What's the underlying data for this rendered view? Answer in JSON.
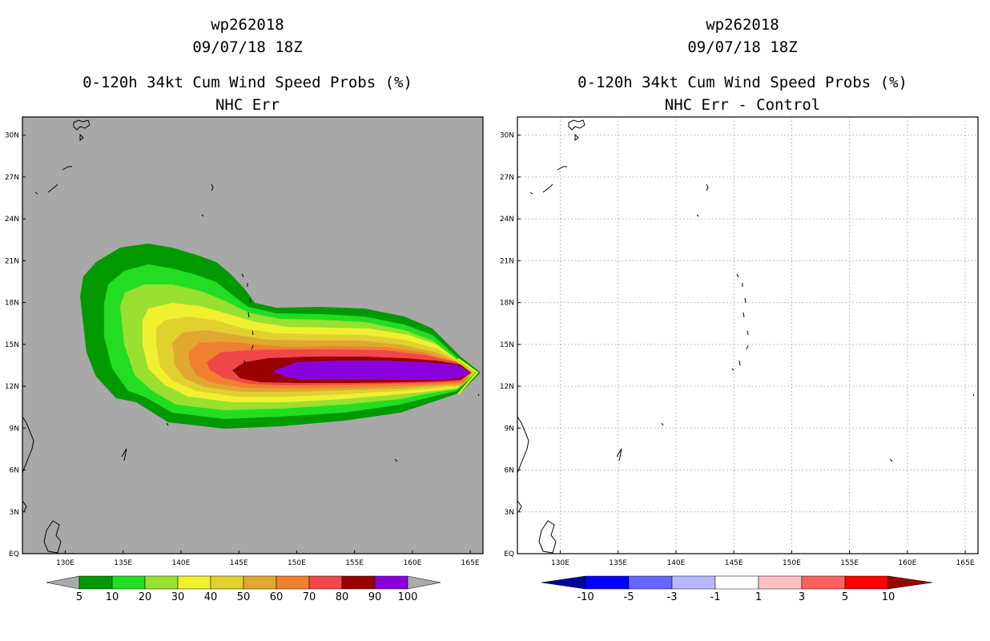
{
  "panels": [
    {
      "title_line1": "wp262018",
      "title_line2": "09/07/18 18Z",
      "title_line3": "0-120h 34kt Cum Wind Speed Probs (%)",
      "title_line4": "NHC Err"
    },
    {
      "title_line1": "wp262018",
      "title_line2": "09/07/18 18Z",
      "title_line3": "0-120h 34kt Cum Wind Speed Probs (%)",
      "title_line4": "NHC Err - Control"
    }
  ],
  "axes": {
    "lat_labels": [
      "EQ",
      "3N",
      "6N",
      "9N",
      "12N",
      "15N",
      "18N",
      "21N",
      "24N",
      "27N",
      "30N"
    ],
    "lon_labels": [
      "130E",
      "135E",
      "140E",
      "145E",
      "150E",
      "155E",
      "160E",
      "165E"
    ]
  },
  "colorbar_left": {
    "labels": [
      "5",
      "10",
      "20",
      "30",
      "40",
      "50",
      "60",
      "70",
      "80",
      "90",
      "100"
    ],
    "colors": [
      "#009900",
      "#22dd22",
      "#99e030",
      "#f0f030",
      "#e0d030",
      "#e0a830",
      "#f08030",
      "#f04848",
      "#990000",
      "#8a00dd"
    ]
  },
  "colorbar_right": {
    "labels": [
      "-10",
      "-5",
      "-3",
      "-1",
      "1",
      "3",
      "5",
      "10"
    ],
    "colors": [
      "#0000a0",
      "#0000ff",
      "#6666ff",
      "#b8b8ff",
      "#ffffff",
      "#ffc0c0",
      "#ff6060",
      "#ff0000",
      "#990000"
    ]
  },
  "colors": {
    "map_background": "#a8a8a8",
    "coastline": "#000000",
    "grid": "#aaaaaa"
  }
}
